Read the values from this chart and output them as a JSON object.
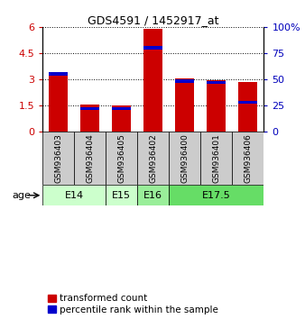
{
  "title": "GDS4591 / 1452917_at",
  "samples": [
    "GSM936403",
    "GSM936404",
    "GSM936405",
    "GSM936402",
    "GSM936400",
    "GSM936401",
    "GSM936406"
  ],
  "red_values": [
    3.3,
    1.55,
    1.5,
    5.9,
    3.05,
    2.95,
    2.85
  ],
  "blue_values_pct": [
    55,
    22,
    22,
    80,
    48,
    47,
    28
  ],
  "ylim_left": [
    0,
    6
  ],
  "ylim_right": [
    0,
    100
  ],
  "yticks_left": [
    0,
    1.5,
    3.0,
    4.5,
    6.0
  ],
  "yticks_right": [
    0,
    25,
    50,
    75,
    100
  ],
  "ytick_labels_left": [
    "0",
    "1.5",
    "3",
    "4.5",
    "6"
  ],
  "ytick_labels_right": [
    "0",
    "25",
    "50",
    "75",
    "100%"
  ],
  "age_groups": [
    {
      "label": "E14",
      "start": 0,
      "end": 2,
      "color": "#ccffcc"
    },
    {
      "label": "E15",
      "start": 2,
      "end": 3,
      "color": "#ccffcc"
    },
    {
      "label": "E16",
      "start": 3,
      "end": 4,
      "color": "#99ee99"
    },
    {
      "label": "E17.5",
      "start": 4,
      "end": 7,
      "color": "#66dd66"
    }
  ],
  "bar_color_red": "#cc0000",
  "bar_color_blue": "#0000cc",
  "bar_width": 0.6,
  "bg_color": "#ffffff",
  "plot_bg": "#ffffff",
  "sample_box_color": "#cccccc",
  "left_tick_color": "#cc0000",
  "right_tick_color": "#0000bb",
  "legend_label_red": "transformed count",
  "legend_label_blue": "percentile rank within the sample",
  "age_label": "age"
}
